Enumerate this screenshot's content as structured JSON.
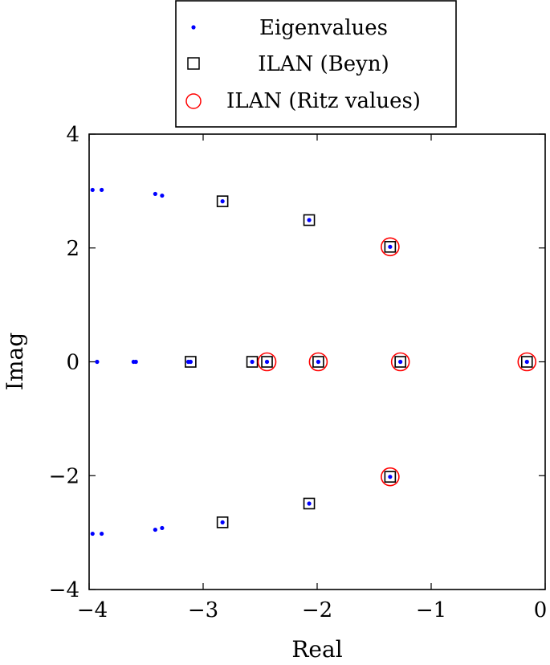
{
  "chart_data": {
    "type": "scatter",
    "xlabel": "Real",
    "ylabel": "Imag",
    "xlim": [
      -4,
      0
    ],
    "ylim": [
      -4,
      4
    ],
    "x_ticks": [
      -4,
      -3,
      -2,
      -1,
      0
    ],
    "y_ticks": [
      -4,
      -2,
      0,
      2,
      4
    ],
    "x_tick_labels": [
      "−4",
      "−3",
      "−2",
      "−1",
      "0"
    ],
    "y_tick_labels": [
      "−4",
      "−2",
      "0",
      "2",
      "4"
    ],
    "grid": false,
    "legend_position": "top-center (above plot)",
    "legend": [
      {
        "label": "Eigenvalues",
        "marker": "dot",
        "color": "#0000ff"
      },
      {
        "label": "ILAN (Beyn)",
        "marker": "square",
        "color": "#000000"
      },
      {
        "label": "ILAN (Ritz values)",
        "marker": "circle",
        "color": "#ff0000"
      }
    ],
    "series": [
      {
        "name": "Eigenvalues",
        "marker": "dot",
        "color": "#0000ff",
        "points": [
          [
            -3.97,
            3.02
          ],
          [
            -3.89,
            3.02
          ],
          [
            -3.42,
            2.95
          ],
          [
            -3.36,
            2.92
          ],
          [
            -2.83,
            2.82
          ],
          [
            -2.07,
            2.49
          ],
          [
            -1.36,
            2.02
          ],
          [
            -3.93,
            0
          ],
          [
            -3.61,
            0
          ],
          [
            -3.59,
            0
          ],
          [
            -3.13,
            0
          ],
          [
            -3.11,
            0
          ],
          [
            -2.57,
            0
          ],
          [
            -2.44,
            0
          ],
          [
            -1.99,
            0
          ],
          [
            -1.27,
            0
          ],
          [
            -0.16,
            0
          ],
          [
            -1.36,
            -2.02
          ],
          [
            -2.07,
            -2.49
          ],
          [
            -2.83,
            -2.82
          ],
          [
            -3.42,
            -2.95
          ],
          [
            -3.36,
            -2.92
          ],
          [
            -3.97,
            -3.02
          ],
          [
            -3.89,
            -3.02
          ]
        ]
      },
      {
        "name": "ILAN (Beyn)",
        "marker": "square",
        "color": "#000000",
        "points": [
          [
            -2.83,
            2.82
          ],
          [
            -2.07,
            2.49
          ],
          [
            -1.36,
            2.02
          ],
          [
            -3.11,
            0
          ],
          [
            -2.57,
            0
          ],
          [
            -2.44,
            0
          ],
          [
            -1.99,
            0
          ],
          [
            -1.27,
            0
          ],
          [
            -0.16,
            0
          ],
          [
            -1.36,
            -2.02
          ],
          [
            -2.07,
            -2.49
          ],
          [
            -2.83,
            -2.82
          ]
        ]
      },
      {
        "name": "ILAN (Ritz values)",
        "marker": "circle",
        "color": "#ff0000",
        "points": [
          [
            -1.36,
            2.02
          ],
          [
            -2.44,
            0
          ],
          [
            -1.99,
            0
          ],
          [
            -1.27,
            0
          ],
          [
            -0.16,
            0
          ],
          [
            -1.36,
            -2.02
          ]
        ]
      }
    ]
  }
}
